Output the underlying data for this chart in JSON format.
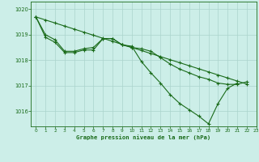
{
  "title": "Graphe pression niveau de la mer (hPa)",
  "background_color": "#cceee8",
  "grid_color": "#aad4cc",
  "line_color": "#1a6b1a",
  "xlim": [
    -0.5,
    23
  ],
  "ylim": [
    1015.4,
    1020.3
  ],
  "yticks": [
    1016,
    1017,
    1018,
    1019,
    1020
  ],
  "xticks": [
    0,
    1,
    2,
    3,
    4,
    5,
    6,
    7,
    8,
    9,
    10,
    11,
    12,
    13,
    14,
    15,
    16,
    17,
    18,
    19,
    20,
    21,
    22,
    23
  ],
  "line1_x": [
    0,
    1,
    2,
    3,
    4,
    5,
    6,
    7,
    8,
    9,
    10,
    11,
    12,
    13,
    14,
    15,
    16,
    17,
    18,
    19,
    20,
    21,
    22
  ],
  "line1_y": [
    1019.7,
    1019.58,
    1019.46,
    1019.34,
    1019.22,
    1019.1,
    1018.98,
    1018.86,
    1018.74,
    1018.62,
    1018.5,
    1018.38,
    1018.26,
    1018.14,
    1018.02,
    1017.9,
    1017.78,
    1017.66,
    1017.54,
    1017.42,
    1017.3,
    1017.18,
    1017.06
  ],
  "line2_x": [
    0,
    1,
    2,
    3,
    4,
    5,
    6,
    7,
    8,
    9,
    10,
    11,
    12,
    13,
    14,
    15,
    16,
    17,
    18,
    19,
    20,
    21,
    22
  ],
  "line2_y": [
    1019.7,
    1019.0,
    1018.8,
    1018.35,
    1018.35,
    1018.45,
    1018.5,
    1018.85,
    1018.85,
    1018.6,
    1018.5,
    1018.45,
    1018.35,
    1018.1,
    1017.85,
    1017.65,
    1017.5,
    1017.35,
    1017.25,
    1017.1,
    1017.05,
    1017.05,
    1017.15
  ],
  "line3_x": [
    0,
    1,
    2,
    3,
    4,
    5,
    6,
    7,
    8,
    9,
    10,
    11,
    12,
    13,
    14,
    15,
    16,
    17,
    18,
    19,
    20,
    21
  ],
  "line3_y": [
    1019.7,
    1018.9,
    1018.7,
    1018.3,
    1018.3,
    1018.4,
    1018.4,
    1018.85,
    1018.85,
    1018.6,
    1018.55,
    1017.95,
    1017.5,
    1017.1,
    1016.65,
    1016.3,
    1016.05,
    1015.8,
    1015.5,
    1016.3,
    1016.9,
    1017.1
  ]
}
